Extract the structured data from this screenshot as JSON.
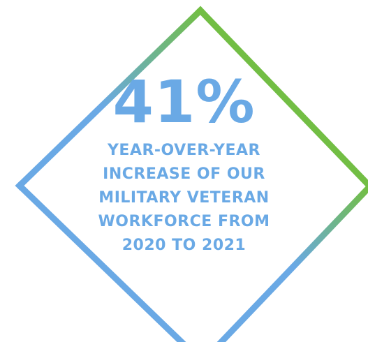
{
  "stat": {
    "value": "41%",
    "lines": [
      "YEAR-OVER-YEAR",
      "INCREASE OF OUR",
      "MILITARY VETERAN",
      "WORKFORCE FROM",
      "2020 TO 2021"
    ]
  },
  "colors": {
    "text": "#6aa9e5",
    "frame_green": "#72be44",
    "frame_blue": "#6aa9e5"
  }
}
